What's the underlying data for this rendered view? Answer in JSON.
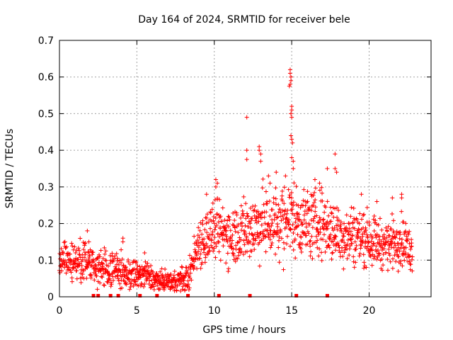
{
  "chart_data": {
    "type": "scatter",
    "title": "Day 164 of 2024, SRMTID for receiver bele",
    "xlabel": "GPS time / hours",
    "ylabel": "SRMTID / TECUs",
    "xlim": [
      0,
      24
    ],
    "ylim": [
      0,
      0.7
    ],
    "xticks": [
      0,
      5,
      10,
      15,
      20
    ],
    "yticks": [
      0,
      0.1,
      0.2,
      0.3,
      0.4,
      0.5,
      0.6,
      0.7
    ],
    "grid": true,
    "marker": "plus",
    "color": "#ff0000",
    "trend": [
      {
        "x": 0.0,
        "y": 0.1,
        "spread": 0.025
      },
      {
        "x": 1.0,
        "y": 0.09,
        "spread": 0.025
      },
      {
        "x": 1.8,
        "y": 0.095,
        "spread": 0.03
      },
      {
        "x": 2.5,
        "y": 0.08,
        "spread": 0.025
      },
      {
        "x": 3.5,
        "y": 0.075,
        "spread": 0.025
      },
      {
        "x": 4.5,
        "y": 0.06,
        "spread": 0.02
      },
      {
        "x": 5.5,
        "y": 0.06,
        "spread": 0.02
      },
      {
        "x": 6.5,
        "y": 0.04,
        "spread": 0.015
      },
      {
        "x": 7.5,
        "y": 0.045,
        "spread": 0.015
      },
      {
        "x": 8.3,
        "y": 0.05,
        "spread": 0.02
      },
      {
        "x": 9.0,
        "y": 0.15,
        "spread": 0.035
      },
      {
        "x": 10.0,
        "y": 0.18,
        "spread": 0.04
      },
      {
        "x": 11.0,
        "y": 0.17,
        "spread": 0.04
      },
      {
        "x": 12.0,
        "y": 0.18,
        "spread": 0.045
      },
      {
        "x": 13.0,
        "y": 0.2,
        "spread": 0.045
      },
      {
        "x": 14.0,
        "y": 0.2,
        "spread": 0.05
      },
      {
        "x": 15.0,
        "y": 0.22,
        "spread": 0.05
      },
      {
        "x": 16.0,
        "y": 0.2,
        "spread": 0.045
      },
      {
        "x": 17.0,
        "y": 0.2,
        "spread": 0.045
      },
      {
        "x": 18.0,
        "y": 0.17,
        "spread": 0.04
      },
      {
        "x": 19.0,
        "y": 0.17,
        "spread": 0.04
      },
      {
        "x": 20.0,
        "y": 0.16,
        "spread": 0.035
      },
      {
        "x": 21.0,
        "y": 0.14,
        "spread": 0.03
      },
      {
        "x": 22.0,
        "y": 0.16,
        "spread": 0.035
      },
      {
        "x": 22.8,
        "y": 0.12,
        "spread": 0.025
      }
    ],
    "outliers": [
      {
        "x": 1.8,
        "y": 0.18
      },
      {
        "x": 1.9,
        "y": 0.15
      },
      {
        "x": 4.1,
        "y": 0.16
      },
      {
        "x": 4.1,
        "y": 0.15
      },
      {
        "x": 5.5,
        "y": 0.12
      },
      {
        "x": 9.5,
        "y": 0.28
      },
      {
        "x": 10.1,
        "y": 0.32
      },
      {
        "x": 10.1,
        "y": 0.3
      },
      {
        "x": 10.2,
        "y": 0.31
      },
      {
        "x": 12.1,
        "y": 0.49
      },
      {
        "x": 12.1,
        "y": 0.4
      },
      {
        "x": 12.1,
        "y": 0.375
      },
      {
        "x": 12.9,
        "y": 0.41
      },
      {
        "x": 12.9,
        "y": 0.4
      },
      {
        "x": 13.0,
        "y": 0.39
      },
      {
        "x": 13.0,
        "y": 0.37
      },
      {
        "x": 13.5,
        "y": 0.33
      },
      {
        "x": 13.6,
        "y": 0.31
      },
      {
        "x": 14.0,
        "y": 0.34
      },
      {
        "x": 14.6,
        "y": 0.33
      },
      {
        "x": 14.9,
        "y": 0.62
      },
      {
        "x": 14.9,
        "y": 0.61
      },
      {
        "x": 14.95,
        "y": 0.6
      },
      {
        "x": 14.95,
        "y": 0.59
      },
      {
        "x": 14.9,
        "y": 0.58
      },
      {
        "x": 14.85,
        "y": 0.575
      },
      {
        "x": 15.0,
        "y": 0.52
      },
      {
        "x": 15.0,
        "y": 0.51
      },
      {
        "x": 14.95,
        "y": 0.5
      },
      {
        "x": 15.0,
        "y": 0.49
      },
      {
        "x": 14.95,
        "y": 0.44
      },
      {
        "x": 15.0,
        "y": 0.43
      },
      {
        "x": 15.05,
        "y": 0.42
      },
      {
        "x": 15.0,
        "y": 0.38
      },
      {
        "x": 15.1,
        "y": 0.37
      },
      {
        "x": 15.1,
        "y": 0.35
      },
      {
        "x": 16.5,
        "y": 0.32
      },
      {
        "x": 16.8,
        "y": 0.31
      },
      {
        "x": 17.3,
        "y": 0.35
      },
      {
        "x": 17.8,
        "y": 0.39
      },
      {
        "x": 17.8,
        "y": 0.35
      },
      {
        "x": 17.9,
        "y": 0.34
      },
      {
        "x": 19.5,
        "y": 0.28
      },
      {
        "x": 20.5,
        "y": 0.26
      },
      {
        "x": 21.5,
        "y": 0.27
      },
      {
        "x": 22.1,
        "y": 0.28
      },
      {
        "x": 22.1,
        "y": 0.27
      }
    ],
    "gap_markers_x": [
      2.2,
      2.5,
      3.3,
      3.8,
      5.2,
      6.3,
      8.3,
      10.3,
      12.3,
      15.3,
      17.3
    ]
  }
}
